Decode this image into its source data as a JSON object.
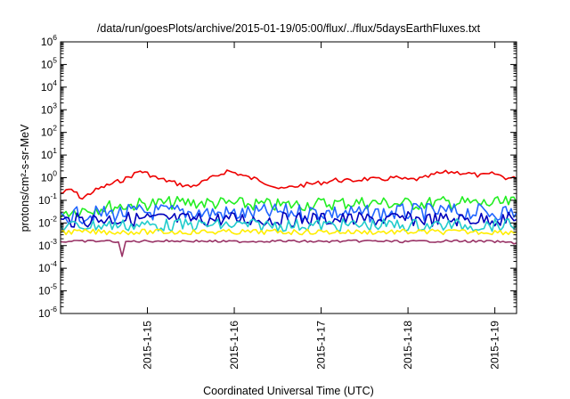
{
  "chart_data": {
    "type": "line",
    "title": "/data/run/goesPlots/archive/2015-01-19/05:00/flux/../flux/5daysEarthFluxes.txt",
    "xlabel": "Coordinated Universal Time (UTC)",
    "ylabel": "protons/cm²-s-sr-MeV",
    "y_scale": "log",
    "ylim": [
      1e-06,
      1000000.0
    ],
    "xlim": [
      "2015-01-14T00:00",
      "2015-01-19T06:00"
    ],
    "grid": false,
    "legend": "none",
    "y_ticks": [
      {
        "base": "10",
        "exp": "-6"
      },
      {
        "base": "10",
        "exp": "-5"
      },
      {
        "base": "10",
        "exp": "-4"
      },
      {
        "base": "10",
        "exp": "-3"
      },
      {
        "base": "10",
        "exp": "-2"
      },
      {
        "base": "10",
        "exp": "-1"
      },
      {
        "base": "10",
        "exp": "0"
      },
      {
        "base": "10",
        "exp": "1"
      },
      {
        "base": "10",
        "exp": "2"
      },
      {
        "base": "10",
        "exp": "3"
      },
      {
        "base": "10",
        "exp": "4"
      },
      {
        "base": "10",
        "exp": "5"
      },
      {
        "base": "10",
        "exp": "6"
      }
    ],
    "x_ticks": [
      {
        "label": "2015-1-15",
        "value": "2015-01-15T00:00"
      },
      {
        "label": "2015-1-16",
        "value": "2015-01-16T00:00"
      },
      {
        "label": "2015-1-17",
        "value": "2015-01-17T00:00"
      },
      {
        "label": "2015-1-18",
        "value": "2015-01-18T00:00"
      },
      {
        "label": "2015-1-19",
        "value": "2015-01-19T00:00"
      }
    ],
    "series": [
      {
        "color": "#ee0000",
        "points": [
          [
            "2015-01-14T00:00",
            0.2
          ],
          [
            "2015-01-14T03:00",
            0.3
          ],
          [
            "2015-01-14T06:00",
            0.12
          ],
          [
            "2015-01-14T09:00",
            0.25
          ],
          [
            "2015-01-14T12:00",
            0.4
          ],
          [
            "2015-01-14T15:00",
            0.6
          ],
          [
            "2015-01-14T18:00",
            0.9
          ],
          [
            "2015-01-14T22:00",
            2.0
          ],
          [
            "2015-01-15T00:00",
            1.5
          ],
          [
            "2015-01-15T03:00",
            0.9
          ],
          [
            "2015-01-15T06:00",
            0.7
          ],
          [
            "2015-01-15T09:00",
            0.5
          ],
          [
            "2015-01-15T12:00",
            0.4
          ],
          [
            "2015-01-15T15:00",
            0.6
          ],
          [
            "2015-01-15T18:00",
            1.0
          ],
          [
            "2015-01-15T22:00",
            2.0
          ],
          [
            "2015-01-16T01:00",
            1.5
          ],
          [
            "2015-01-16T04:00",
            1.0
          ],
          [
            "2015-01-16T07:00",
            0.8
          ],
          [
            "2015-01-16T10:00",
            0.5
          ],
          [
            "2015-01-16T13:00",
            0.3
          ],
          [
            "2015-01-16T16:00",
            0.4
          ],
          [
            "2015-01-16T20:00",
            0.5
          ],
          [
            "2015-01-17T00:00",
            0.6
          ],
          [
            "2015-01-17T04:00",
            0.8
          ],
          [
            "2015-01-17T08:00",
            0.7
          ],
          [
            "2015-01-17T12:00",
            0.9
          ],
          [
            "2015-01-17T16:00",
            0.8
          ],
          [
            "2015-01-17T20:00",
            1.0
          ],
          [
            "2015-01-18T00:00",
            0.8
          ],
          [
            "2015-01-18T04:00",
            0.9
          ],
          [
            "2015-01-18T08:00",
            1.5
          ],
          [
            "2015-01-18T12:00",
            1.8
          ],
          [
            "2015-01-18T16:00",
            1.6
          ],
          [
            "2015-01-18T20:00",
            1.2
          ],
          [
            "2015-01-19T00:00",
            1.5
          ],
          [
            "2015-01-19T03:00",
            1.0
          ],
          [
            "2015-01-19T06:00",
            0.9
          ]
        ]
      },
      {
        "color": "#22ee22",
        "points": [
          [
            "2015-01-14T00:00",
            0.03
          ],
          [
            "2015-01-14T12:00",
            0.05
          ],
          [
            "2015-01-15T00:00",
            0.07
          ],
          [
            "2015-01-15T12:00",
            0.08
          ],
          [
            "2015-01-16T00:00",
            0.07
          ],
          [
            "2015-01-16T12:00",
            0.06
          ],
          [
            "2015-01-17T00:00",
            0.07
          ],
          [
            "2015-01-17T12:00",
            0.08
          ],
          [
            "2015-01-18T00:00",
            0.07
          ],
          [
            "2015-01-18T12:00",
            0.08
          ],
          [
            "2015-01-19T00:00",
            0.07
          ],
          [
            "2015-01-19T06:00",
            0.08
          ]
        ]
      },
      {
        "color": "#2266ff",
        "points": [
          [
            "2015-01-14T00:00",
            0.02
          ],
          [
            "2015-01-14T12:00",
            0.025
          ],
          [
            "2015-01-15T00:00",
            0.03
          ],
          [
            "2015-01-15T12:00",
            0.03
          ],
          [
            "2015-01-16T00:00",
            0.025
          ],
          [
            "2015-01-16T12:00",
            0.03
          ],
          [
            "2015-01-17T00:00",
            0.03
          ],
          [
            "2015-01-17T12:00",
            0.025
          ],
          [
            "2015-01-18T00:00",
            0.03
          ],
          [
            "2015-01-18T12:00",
            0.03
          ],
          [
            "2015-01-19T00:00",
            0.03
          ],
          [
            "2015-01-19T06:00",
            0.03
          ]
        ]
      },
      {
        "color": "#0000bb",
        "points": [
          [
            "2015-01-14T00:00",
            0.012
          ],
          [
            "2015-01-14T12:00",
            0.015
          ],
          [
            "2015-01-15T00:00",
            0.015
          ],
          [
            "2015-01-15T12:00",
            0.014
          ],
          [
            "2015-01-16T00:00",
            0.015
          ],
          [
            "2015-01-16T12:00",
            0.014
          ],
          [
            "2015-01-17T00:00",
            0.015
          ],
          [
            "2015-01-17T12:00",
            0.014
          ],
          [
            "2015-01-18T00:00",
            0.015
          ],
          [
            "2015-01-18T12:00",
            0.014
          ],
          [
            "2015-01-19T00:00",
            0.015
          ],
          [
            "2015-01-19T06:00",
            0.014
          ]
        ]
      },
      {
        "color": "#22cccc",
        "points": [
          [
            "2015-01-14T00:00",
            0.007
          ],
          [
            "2015-01-14T12:00",
            0.008
          ],
          [
            "2015-01-15T00:00",
            0.008
          ],
          [
            "2015-01-15T12:00",
            0.008
          ],
          [
            "2015-01-16T00:00",
            0.008
          ],
          [
            "2015-01-16T12:00",
            0.008
          ],
          [
            "2015-01-17T00:00",
            0.008
          ],
          [
            "2015-01-17T12:00",
            0.008
          ],
          [
            "2015-01-18T00:00",
            0.008
          ],
          [
            "2015-01-18T12:00",
            0.008
          ],
          [
            "2015-01-19T00:00",
            0.008
          ],
          [
            "2015-01-19T06:00",
            0.008
          ]
        ]
      },
      {
        "color": "#ffee00",
        "points": [
          [
            "2015-01-14T00:00",
            0.004
          ],
          [
            "2015-01-14T12:00",
            0.004
          ],
          [
            "2015-01-15T00:00",
            0.004
          ],
          [
            "2015-01-15T12:00",
            0.004
          ],
          [
            "2015-01-16T00:00",
            0.004
          ],
          [
            "2015-01-16T12:00",
            0.004
          ],
          [
            "2015-01-17T00:00",
            0.004
          ],
          [
            "2015-01-17T12:00",
            0.004
          ],
          [
            "2015-01-18T00:00",
            0.004
          ],
          [
            "2015-01-18T12:00",
            0.004
          ],
          [
            "2015-01-19T00:00",
            0.004
          ],
          [
            "2015-01-19T06:00",
            0.004
          ]
        ]
      },
      {
        "color": "#993366",
        "points": [
          [
            "2015-01-14T00:00",
            0.0015
          ],
          [
            "2015-01-14T12:00",
            0.0016
          ],
          [
            "2015-01-14T16:00",
            0.0015
          ],
          [
            "2015-01-14T17:00",
            0.0003
          ],
          [
            "2015-01-14T18:00",
            0.0015
          ],
          [
            "2015-01-15T00:00",
            0.0016
          ],
          [
            "2015-01-15T12:00",
            0.0016
          ],
          [
            "2015-01-16T00:00",
            0.0015
          ],
          [
            "2015-01-16T12:00",
            0.0016
          ],
          [
            "2015-01-17T00:00",
            0.0015
          ],
          [
            "2015-01-17T12:00",
            0.0016
          ],
          [
            "2015-01-18T00:00",
            0.0015
          ],
          [
            "2015-01-18T12:00",
            0.0016
          ],
          [
            "2015-01-19T00:00",
            0.0015
          ],
          [
            "2015-01-19T06:00",
            0.0013
          ]
        ]
      }
    ]
  }
}
